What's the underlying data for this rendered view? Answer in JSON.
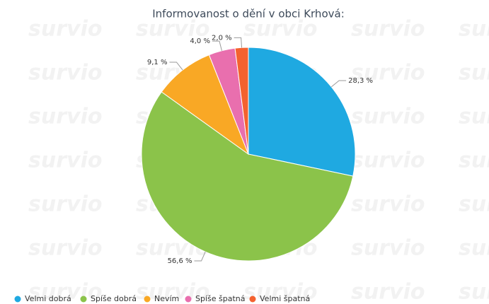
{
  "chart_data": {
    "type": "pie",
    "title": "Informovanost o dění v obci Krhová:",
    "watermark": "survio",
    "categories": [
      "Velmi dobrá",
      "Spíše dobrá",
      "Nevím",
      "Spíše špatná",
      "Velmi špatná"
    ],
    "values": [
      28.3,
      56.6,
      9.1,
      4.0,
      2.0
    ],
    "value_labels": [
      "28,3 %",
      "56,6 %",
      "9,1 %",
      "4,0 %",
      "2,0 %"
    ],
    "colors": [
      "#1fa9e1",
      "#8bc34a",
      "#f9a825",
      "#e96fae",
      "#f4622f"
    ],
    "legend": "bottom"
  }
}
